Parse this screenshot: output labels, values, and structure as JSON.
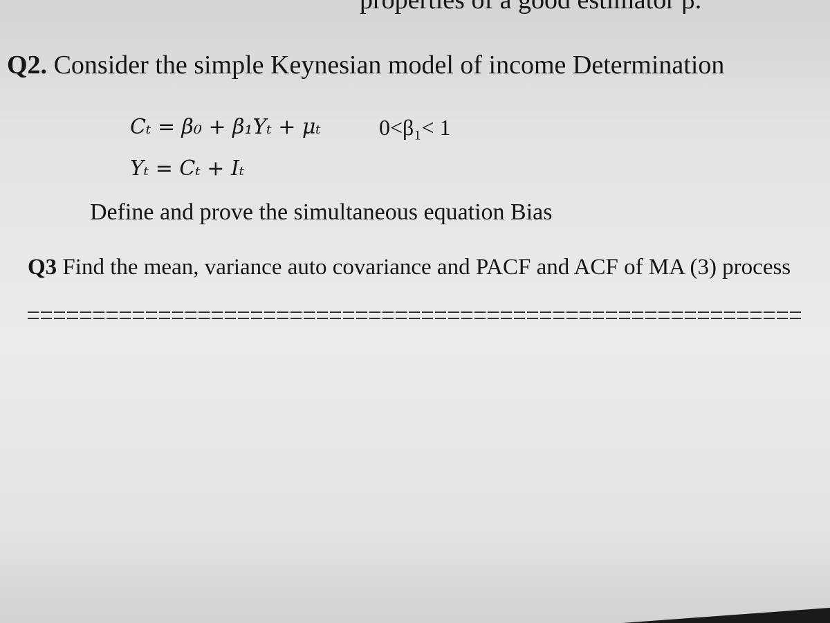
{
  "header": {
    "fragment": "properties of a good estimator β̂."
  },
  "q2": {
    "label": "Q2.",
    "text": "Consider the simple Keynesian model of income Determination",
    "equations": [
      "Cₜ = β₀ + β₁Yₜ + μₜ",
      "Yₜ = Cₜ + Iₜ"
    ],
    "condition": "0<β₁< 1",
    "task": "Define and prove the simultaneous equation Bias"
  },
  "q3": {
    "label": "Q3",
    "text": "Find the mean, variance auto covariance and PACF and ACF of MA (3) process"
  }
}
